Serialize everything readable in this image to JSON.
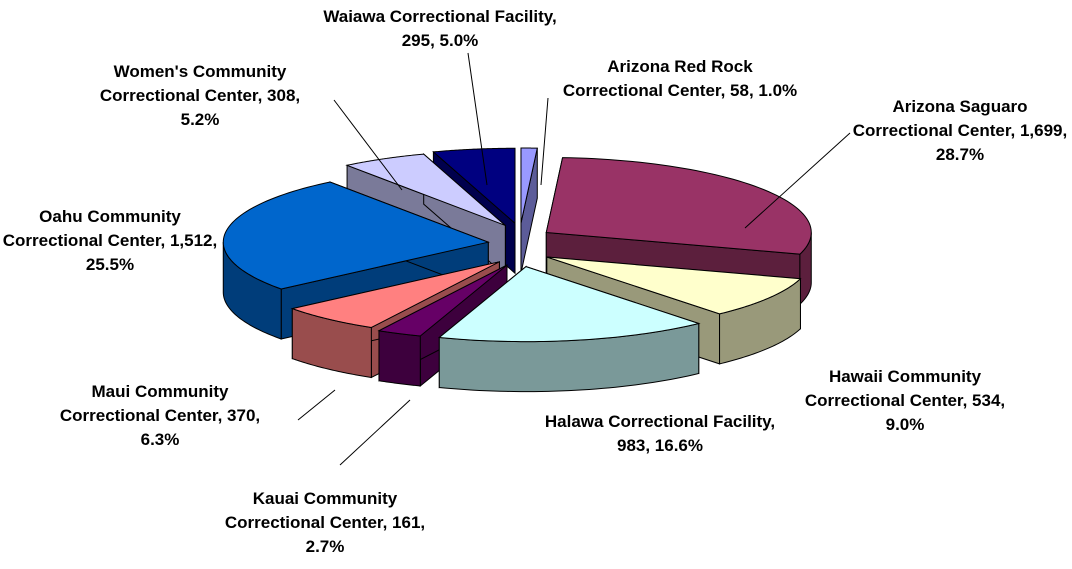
{
  "chart_data": {
    "type": "pie3d",
    "values": [
      58,
      1699,
      534,
      983,
      161,
      370,
      1512,
      308,
      295
    ],
    "value_labels": [
      "Arizona Red Rock Correctional Center, 58, 1.0%",
      "Arizona Saguaro Correctional Center, 1,699, 28.7%",
      "Hawaii Community Correctional Center, 534, 9.0%",
      "Halawa Correctional Facility, 983, 16.6%",
      "Kauai Community Correctional Center, 161, 2.7%",
      "Maui Community Correctional Center, 370, 6.3%",
      "Oahu Community Correctional Center, 1,512, 25.5%",
      "Women's Community Correctional Center, 308, 5.2%",
      "Waiawa Correctional Facility, 295, 5.0%"
    ],
    "colors": [
      "#9999ff",
      "#993366",
      "#ffffcc",
      "#ccffff",
      "#660066",
      "#ff8080",
      "#0066cc",
      "#ccccff",
      "#000080"
    ]
  }
}
